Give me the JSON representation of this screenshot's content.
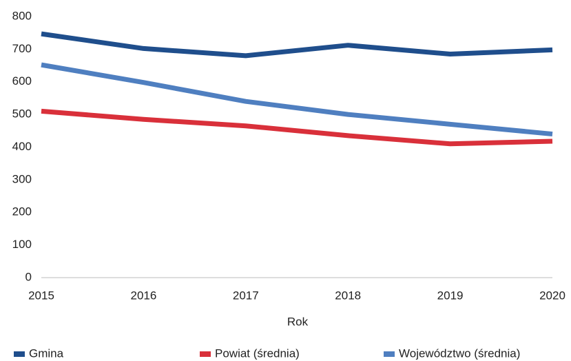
{
  "chart_data": {
    "type": "line",
    "x": [
      2015,
      2016,
      2017,
      2018,
      2019,
      2020
    ],
    "xlabel": "Rok",
    "xlim": [
      2015,
      2020
    ],
    "xticks": [
      2015,
      2016,
      2017,
      2018,
      2019,
      2020
    ],
    "ylim": [
      0,
      800
    ],
    "yticks": [
      0,
      100,
      200,
      300,
      400,
      500,
      600,
      700,
      800
    ],
    "grid": false,
    "legend": "bottom",
    "series": [
      {
        "name": "Gmina",
        "color": "#1f4e8c",
        "values": [
          747,
          702,
          680,
          712,
          685,
          698
        ]
      },
      {
        "name": "Powiat (średnia)",
        "color": "#d9303a",
        "values": [
          510,
          485,
          465,
          435,
          410,
          418
        ]
      },
      {
        "name": "Województwo (średnia)",
        "color": "#4f7fc0",
        "values": [
          652,
          598,
          540,
          500,
          470,
          440
        ]
      }
    ]
  }
}
